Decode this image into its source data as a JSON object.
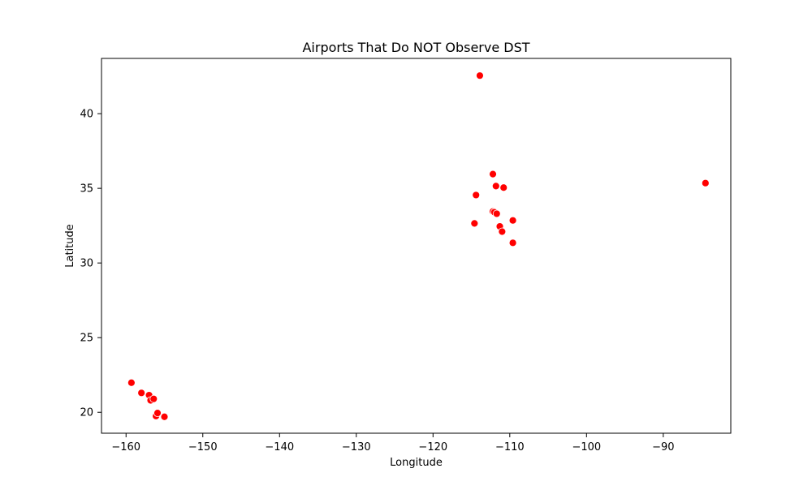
{
  "chart_data": {
    "type": "scatter",
    "title": "Airports That Do NOT Observe DST",
    "xlabel": "Longitude",
    "ylabel": "Latitude",
    "xlim": [
      -163.2,
      -81.2
    ],
    "ylim": [
      18.6,
      43.7
    ],
    "xticks": [
      -160,
      -150,
      -140,
      -130,
      -120,
      -110,
      -100,
      -90
    ],
    "yticks": [
      20,
      25,
      30,
      35,
      40
    ],
    "grid": false,
    "legend": "none",
    "marker_color": "#ff0000",
    "marker_edge_color": "#ffffff",
    "points": [
      {
        "x": -159.3,
        "y": 21.98
      },
      {
        "x": -158.0,
        "y": 21.3
      },
      {
        "x": -157.0,
        "y": 21.15
      },
      {
        "x": -156.8,
        "y": 20.8
      },
      {
        "x": -156.4,
        "y": 20.9
      },
      {
        "x": -156.1,
        "y": 19.75
      },
      {
        "x": -155.9,
        "y": 19.95
      },
      {
        "x": -155.0,
        "y": 19.7
      },
      {
        "x": -113.9,
        "y": 42.55
      },
      {
        "x": -112.2,
        "y": 35.95
      },
      {
        "x": -111.8,
        "y": 35.15
      },
      {
        "x": -110.8,
        "y": 35.05
      },
      {
        "x": -114.4,
        "y": 34.55
      },
      {
        "x": -112.2,
        "y": 33.45
      },
      {
        "x": -112.0,
        "y": 33.4
      },
      {
        "x": -111.7,
        "y": 33.3
      },
      {
        "x": -114.6,
        "y": 32.65
      },
      {
        "x": -109.6,
        "y": 32.85
      },
      {
        "x": -111.3,
        "y": 32.45
      },
      {
        "x": -111.0,
        "y": 32.1
      },
      {
        "x": -109.6,
        "y": 31.35
      },
      {
        "x": -84.5,
        "y": 35.35
      }
    ]
  }
}
